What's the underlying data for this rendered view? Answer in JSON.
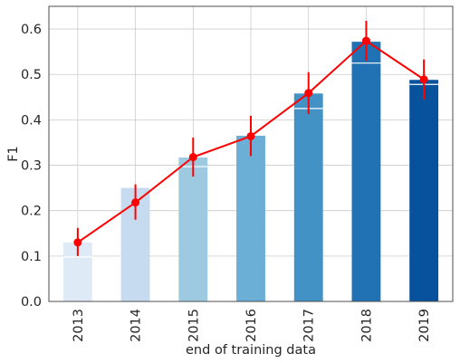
{
  "chart_data": {
    "type": "bar",
    "xlabel": "end of training data",
    "ylabel": "F1",
    "ylim": [
      0.0,
      0.65
    ],
    "yticks": [
      "0.0",
      "0.1",
      "0.2",
      "0.3",
      "0.4",
      "0.5",
      "0.6"
    ],
    "categories": [
      "2013",
      "2014",
      "2015",
      "2016",
      "2017",
      "2018",
      "2019"
    ],
    "bar_values": [
      0.13,
      0.25,
      0.317,
      0.365,
      0.458,
      0.572,
      0.488
    ],
    "bar_colors": [
      "#deebf7",
      "#c6dbef",
      "#9ecae1",
      "#6baed6",
      "#4292c6",
      "#2171b5",
      "#08519c"
    ],
    "bar_inner_lines": [
      0.098,
      null,
      0.297,
      null,
      0.425,
      0.525,
      0.478
    ],
    "line_series": {
      "values": [
        0.13,
        0.218,
        0.318,
        0.364,
        0.459,
        0.574,
        0.489
      ],
      "err_low": [
        0.1,
        0.18,
        0.275,
        0.32,
        0.413,
        0.53,
        0.445
      ],
      "err_high": [
        0.162,
        0.258,
        0.361,
        0.409,
        0.505,
        0.618,
        0.533
      ],
      "color": "#ff0000"
    },
    "grid": true
  }
}
